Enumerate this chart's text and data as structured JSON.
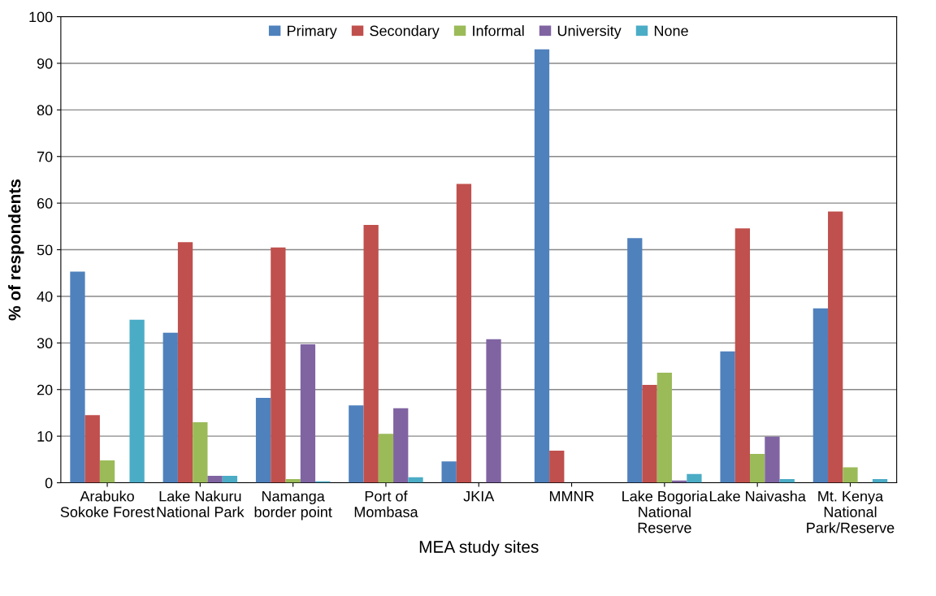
{
  "chart_data": {
    "type": "bar",
    "xlabel": "MEA study sites",
    "ylabel": "% of respondents",
    "categories": [
      "Arabuko\nSokoke Forest",
      "Lake Nakuru\nNational Park",
      "Namanga\nborder point",
      "Port of\nMombasa",
      "JKIA",
      "MMNR",
      "Lake Bogoria\nNational\nReserve",
      "Lake Naivasha",
      "Mt. Kenya\nNational\nPark/Reserve"
    ],
    "series": [
      {
        "name": "Primary",
        "color": "#4f81bd",
        "values": [
          45.3,
          32.2,
          18.2,
          16.6,
          4.6,
          93,
          52.5,
          28.2,
          37.4
        ]
      },
      {
        "name": "Secondary",
        "color": "#c0504d",
        "values": [
          14.5,
          51.6,
          50.5,
          55.3,
          64.1,
          6.9,
          21,
          54.6,
          58.2
        ]
      },
      {
        "name": "Informal",
        "color": "#9bbb59",
        "values": [
          4.8,
          13,
          0.8,
          10.5,
          0,
          0,
          23.6,
          6.2,
          3.3
        ]
      },
      {
        "name": "University",
        "color": "#8064a2",
        "values": [
          0,
          1.5,
          29.7,
          16,
          30.8,
          0,
          0.5,
          9.9,
          0
        ]
      },
      {
        "name": "None",
        "color": "#4bacc6",
        "values": [
          35,
          1.5,
          0.3,
          1.2,
          0,
          0,
          1.9,
          0.8,
          0.8
        ]
      }
    ],
    "ylim": [
      0,
      100
    ],
    "yticks": [
      0,
      10,
      20,
      30,
      40,
      50,
      60,
      70,
      80,
      90,
      100
    ],
    "grid": "y",
    "legend": "top"
  }
}
